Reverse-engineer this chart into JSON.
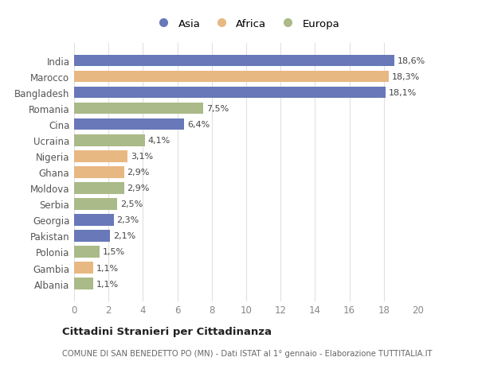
{
  "categories": [
    "India",
    "Marocco",
    "Bangladesh",
    "Romania",
    "Cina",
    "Ucraina",
    "Nigeria",
    "Ghana",
    "Moldova",
    "Serbia",
    "Georgia",
    "Pakistan",
    "Polonia",
    "Gambia",
    "Albania"
  ],
  "values": [
    18.6,
    18.3,
    18.1,
    7.5,
    6.4,
    4.1,
    3.1,
    2.9,
    2.9,
    2.5,
    2.3,
    2.1,
    1.5,
    1.1,
    1.1
  ],
  "labels": [
    "18,6%",
    "18,3%",
    "18,1%",
    "7,5%",
    "6,4%",
    "4,1%",
    "3,1%",
    "2,9%",
    "2,9%",
    "2,5%",
    "2,3%",
    "2,1%",
    "1,5%",
    "1,1%",
    "1,1%"
  ],
  "colors": [
    "#6878b8",
    "#e8b882",
    "#6878b8",
    "#aaba88",
    "#6878b8",
    "#aaba88",
    "#e8b882",
    "#e8b882",
    "#aaba88",
    "#aaba88",
    "#6878b8",
    "#6878b8",
    "#aaba88",
    "#e8b882",
    "#aaba88"
  ],
  "legend": [
    {
      "label": "Asia",
      "color": "#6878b8"
    },
    {
      "label": "Africa",
      "color": "#e8b882"
    },
    {
      "label": "Europa",
      "color": "#aaba88"
    }
  ],
  "xlim": [
    0,
    20
  ],
  "xticks": [
    0,
    2,
    4,
    6,
    8,
    10,
    12,
    14,
    16,
    18,
    20
  ],
  "title": "Cittadini Stranieri per Cittadinanza",
  "subtitle": "COMUNE DI SAN BENEDETTO PO (MN) - Dati ISTAT al 1° gennaio - Elaborazione TUTTITALIA.IT",
  "background_color": "#ffffff",
  "grid_color": "#e0e0e0"
}
